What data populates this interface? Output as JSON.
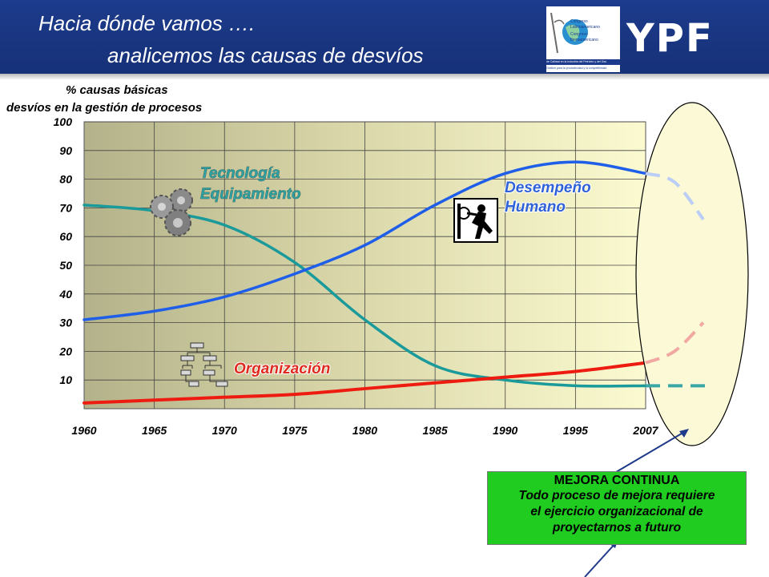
{
  "header": {
    "title_line1": "Hacia dónde vamos ….",
    "title_line2": "analicemos las causas de desvíos",
    "brand": "YPF",
    "congress_logo": {
      "lines": [
        "Congreso",
        "Latinoamericano",
        "Congreso",
        "Iberoamericano"
      ],
      "band_text": "de Calidad en la Industria del Petróleo y del Gas",
      "sub_text": "Gestión para la productividad y la competitividad"
    }
  },
  "chart_data": {
    "type": "line",
    "title": "",
    "ylabel_lines": [
      "% causas básicas",
      "desvíos en la gestión de procesos"
    ],
    "xlabel": "",
    "x_categories": [
      "1960",
      "1965",
      "1970",
      "1975",
      "1980",
      "1985",
      "1990",
      "1995",
      "2007"
    ],
    "y_ticks": [
      10,
      20,
      30,
      40,
      50,
      60,
      70,
      80,
      90,
      100
    ],
    "ylim": [
      0,
      100
    ],
    "grid": true,
    "series": [
      {
        "name": "Tecnología Equipamiento",
        "label_lines": [
          "Tecnología",
          "Equipamiento"
        ],
        "color": "#1a9a9a",
        "values": [
          71,
          69,
          64,
          51,
          31,
          15,
          10,
          8,
          8
        ],
        "projection": [
          8,
          8
        ]
      },
      {
        "name": "Desempeño Humano",
        "label_lines": [
          "Desempeño",
          "Humano"
        ],
        "color": "#1f5ee8",
        "values": [
          31,
          34,
          39,
          47,
          57,
          71,
          82,
          86,
          82
        ],
        "projection": [
          82,
          79,
          66
        ]
      },
      {
        "name": "Organización",
        "label_lines": [
          "Organización"
        ],
        "color": "#ee1c10",
        "values": [
          2,
          3,
          4,
          5,
          7,
          9,
          11,
          13,
          16
        ],
        "projection": [
          16,
          20,
          30
        ]
      }
    ]
  },
  "callout": {
    "title": "MEJORA CONTINUA",
    "body_lines": [
      "Todo proceso de mejora requiere",
      "el  ejercicio organizacional de",
      "proyectarnos a futuro"
    ]
  }
}
